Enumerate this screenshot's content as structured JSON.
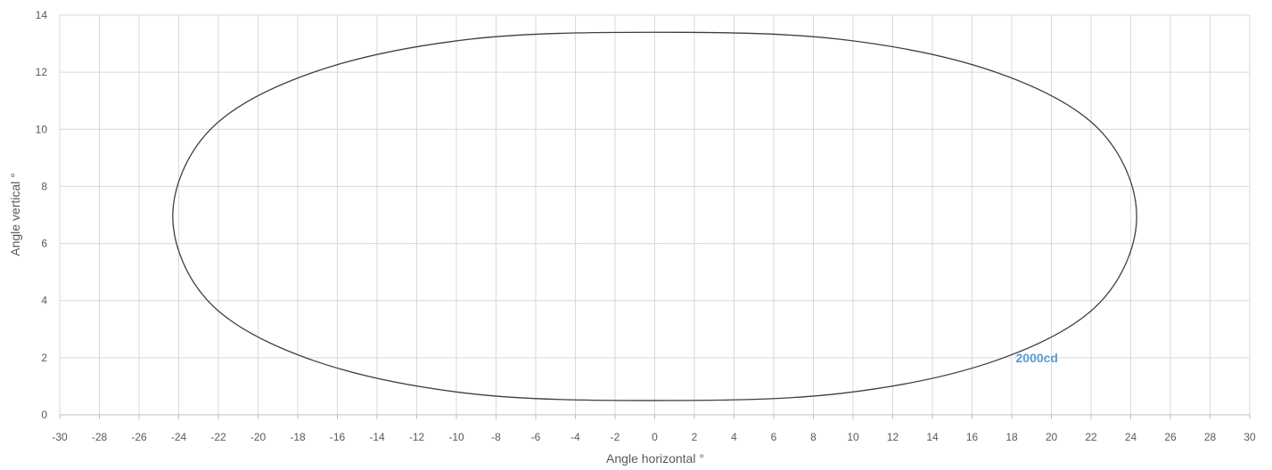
{
  "chart_data": {
    "type": "scatter",
    "title": "",
    "xlabel": "Angle horizontal °",
    "ylabel": "Angle vertical °",
    "xlim": [
      -30,
      30
    ],
    "ylim": [
      0,
      14
    ],
    "xticks": [
      -30,
      -28,
      -26,
      -24,
      -22,
      -20,
      -18,
      -16,
      -14,
      -12,
      -10,
      -8,
      -6,
      -4,
      -2,
      0,
      2,
      4,
      6,
      8,
      10,
      12,
      14,
      16,
      18,
      20,
      22,
      24,
      26,
      28,
      30
    ],
    "yticks": [
      0,
      2,
      4,
      6,
      8,
      10,
      12,
      14
    ],
    "grid": true,
    "series": [
      {
        "name": "2000cd",
        "color": "#3c3c50",
        "points": [
          {
            "x": 24.3,
            "y": 6.95
          },
          {
            "x": 22.4,
            "y": 10.0
          },
          {
            "x": 17.2,
            "y": 12.0
          },
          {
            "x": 9.4,
            "y": 13.15
          },
          {
            "x": 0.0,
            "y": 13.4
          },
          {
            "x": -9.4,
            "y": 13.15
          },
          {
            "x": -17.2,
            "y": 12.0
          },
          {
            "x": -22.4,
            "y": 10.0
          },
          {
            "x": -24.3,
            "y": 6.95
          },
          {
            "x": -22.4,
            "y": 3.9
          },
          {
            "x": -17.2,
            "y": 1.9
          },
          {
            "x": -9.4,
            "y": 0.75
          },
          {
            "x": 0.0,
            "y": 0.5
          },
          {
            "x": 9.4,
            "y": 0.75
          },
          {
            "x": 17.2,
            "y": 1.9
          },
          {
            "x": 22.4,
            "y": 3.9
          },
          {
            "x": 24.3,
            "y": 6.95
          }
        ]
      }
    ],
    "annotations": [
      {
        "text": "2000cd",
        "x": 20.0,
        "y": 2.0,
        "color": "#5b9bd5"
      }
    ]
  }
}
